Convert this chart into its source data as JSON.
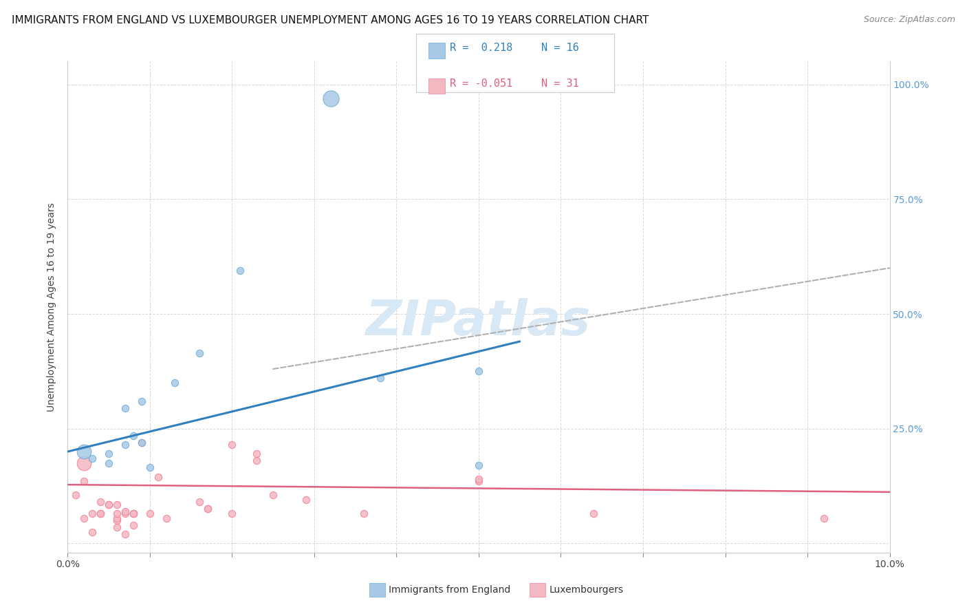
{
  "title": "IMMIGRANTS FROM ENGLAND VS LUXEMBOURGER UNEMPLOYMENT AMONG AGES 16 TO 19 YEARS CORRELATION CHART",
  "source": "Source: ZipAtlas.com",
  "ylabel": "Unemployment Among Ages 16 to 19 years",
  "xlim": [
    0.0,
    0.1
  ],
  "ylim": [
    -0.02,
    1.05
  ],
  "blue_scatter_x": [
    0.003,
    0.005,
    0.005,
    0.007,
    0.007,
    0.008,
    0.009,
    0.009,
    0.01,
    0.013,
    0.016,
    0.021,
    0.038,
    0.05,
    0.05
  ],
  "blue_scatter_y": [
    0.185,
    0.175,
    0.195,
    0.215,
    0.295,
    0.235,
    0.22,
    0.31,
    0.165,
    0.35,
    0.415,
    0.595,
    0.36,
    0.17,
    0.375
  ],
  "blue_special_x": [
    0.032
  ],
  "blue_special_y": [
    0.97
  ],
  "blue_large_x": [
    0.002
  ],
  "blue_large_y": [
    0.2
  ],
  "pink_scatter_x": [
    0.001,
    0.002,
    0.003,
    0.004,
    0.005,
    0.006,
    0.006,
    0.006,
    0.006,
    0.007,
    0.007,
    0.008,
    0.008,
    0.008,
    0.009,
    0.01,
    0.011,
    0.012,
    0.016,
    0.017,
    0.017,
    0.02,
    0.023,
    0.023,
    0.025,
    0.029,
    0.036,
    0.05,
    0.05,
    0.064,
    0.092
  ],
  "pink_scatter_y": [
    0.105,
    0.135,
    0.065,
    0.09,
    0.085,
    0.05,
    0.055,
    0.065,
    0.085,
    0.065,
    0.07,
    0.065,
    0.065,
    0.065,
    0.22,
    0.065,
    0.145,
    0.055,
    0.09,
    0.075,
    0.075,
    0.215,
    0.18,
    0.195,
    0.105,
    0.095,
    0.065,
    0.135,
    0.14,
    0.065,
    0.055
  ],
  "pink_large_x": [
    0.002
  ],
  "pink_large_y": [
    0.175
  ],
  "pink_extra_low_x": [
    0.002,
    0.003,
    0.004,
    0.004,
    0.005,
    0.006,
    0.007,
    0.008,
    0.02
  ],
  "pink_extra_low_y": [
    0.055,
    0.025,
    0.065,
    0.065,
    0.085,
    0.035,
    0.02,
    0.04,
    0.065
  ],
  "blue_line_x": [
    0.0,
    0.055
  ],
  "blue_line_y": [
    0.2,
    0.44
  ],
  "pink_line_x": [
    0.0,
    0.1
  ],
  "pink_line_y": [
    0.128,
    0.112
  ],
  "gray_dash_line_x": [
    0.025,
    0.1
  ],
  "gray_dash_line_y": [
    0.38,
    0.6
  ],
  "legend_r_blue": "R =  0.218",
  "legend_n_blue": "N = 16",
  "legend_r_pink": "R = -0.051",
  "legend_n_pink": "N = 31",
  "blue_color": "#a8c8e8",
  "pink_color": "#f4b8c0",
  "blue_edge_color": "#6baed6",
  "pink_edge_color": "#f48098",
  "blue_line_color": "#3080c0",
  "pink_line_color": "#e06080",
  "gray_dash_color": "#b0b0b0",
  "watermark": "ZIPatlas",
  "background_color": "#ffffff",
  "title_fontsize": 11,
  "source_fontsize": 9,
  "scatter_size_small": 55,
  "scatter_size_large": 220,
  "scatter_size_special": 280
}
